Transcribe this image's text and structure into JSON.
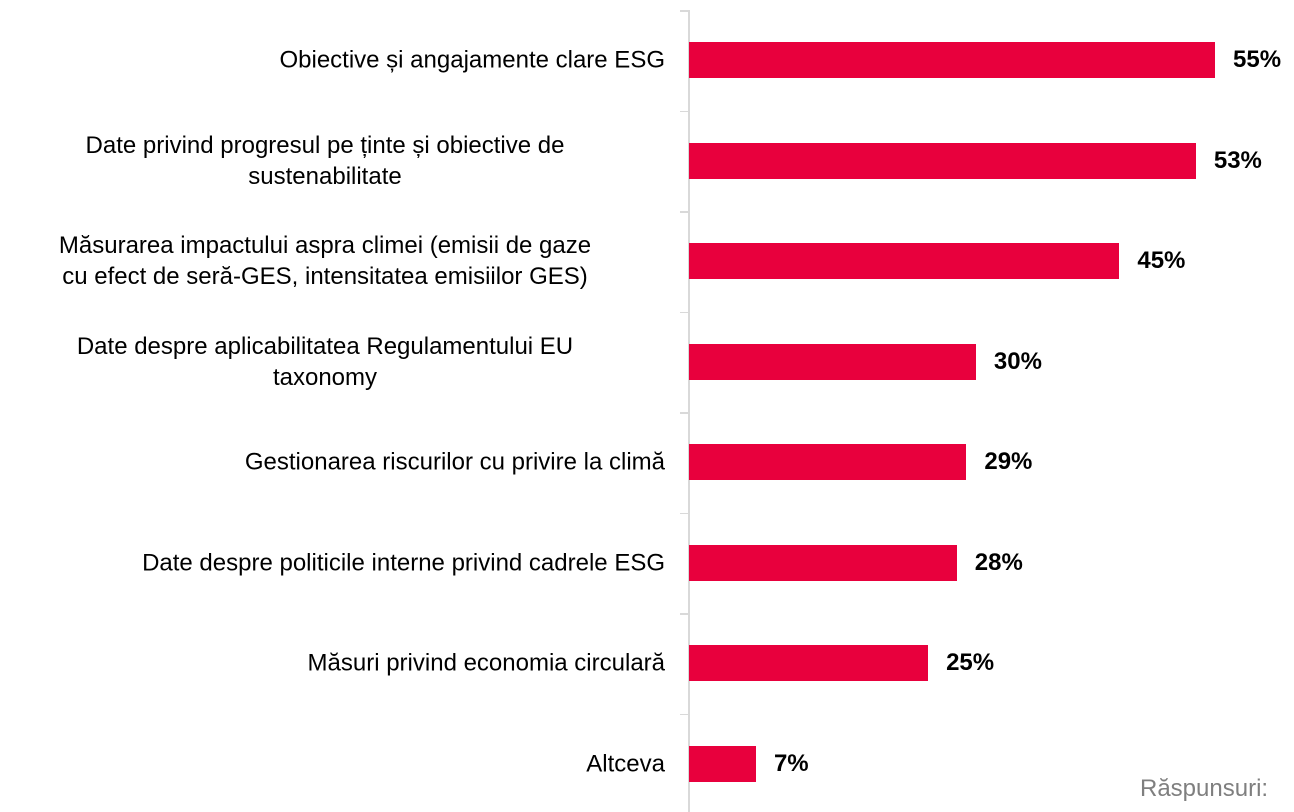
{
  "chart_data": {
    "type": "barh",
    "categories": [
      "Obiective și angajamente clare ESG",
      "Date privind progresul pe ținte și obiective de\nsustenabilitate",
      "Măsurarea impactului aspra climei (emisii de gaze\ncu efect de seră-GES, intensitatea emisiilor GES)",
      "Date despre aplicabilitatea Regulamentului EU\ntaxonomy",
      "Gestionarea riscurilor cu privire la climă",
      "Date despre politicile interne privind cadrele ESG",
      "Măsuri privind economia circulară",
      "Altceva"
    ],
    "values": [
      55,
      53,
      45,
      30,
      29,
      28,
      25,
      7
    ],
    "value_labels": [
      "55%",
      "53%",
      "45%",
      "30%",
      "29%",
      "28%",
      "25%",
      "7%"
    ],
    "color": "#e8003d",
    "footnote": "Răspunsuri:"
  }
}
